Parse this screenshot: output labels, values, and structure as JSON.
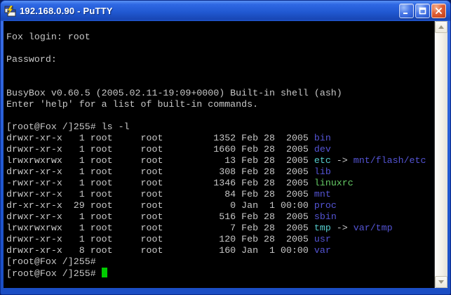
{
  "window": {
    "title": "192.168.0.90 - PuTTY",
    "icons": {
      "app": "putty-terminals-icon",
      "minimize": "minimize-icon",
      "maximize": "maximize-icon",
      "close": "close-icon",
      "scroll_up": "chevron-up-icon",
      "scroll_down": "chevron-down-icon"
    }
  },
  "colors": {
    "titlebar_blue": "#2159d2",
    "border_blue": "#1f55d6",
    "terminal_bg": "#000000",
    "fg": "#c8c8c8",
    "dir_blue": "#5454d4",
    "link_cyan": "#55cccc",
    "exec_green": "#66cc66",
    "cursor_green": "#00cc00"
  },
  "terminal": {
    "prompt": "[root@Fox /]255#",
    "lines": [
      {
        "segments": [
          {
            "t": "Fox login: root",
            "c": "fg"
          }
        ]
      },
      {
        "segments": []
      },
      {
        "segments": [
          {
            "t": "Password:",
            "c": "fg"
          }
        ]
      },
      {
        "segments": []
      },
      {
        "segments": []
      },
      {
        "segments": [
          {
            "t": "BusyBox v0.60.5 (2005.02.11-19:09+0000) Built-in shell (ash)",
            "c": "fg"
          }
        ]
      },
      {
        "segments": [
          {
            "t": "Enter 'help' for a list of built-in commands.",
            "c": "fg"
          }
        ]
      },
      {
        "segments": []
      },
      {
        "segments": [
          {
            "t": "[root@Fox /]255# ls -l",
            "c": "fg"
          }
        ]
      },
      {
        "segments": [
          {
            "t": "drwxr-xr-x   1 root     root         1352 Feb 28  2005 ",
            "c": "fg"
          },
          {
            "t": "bin",
            "c": "dir"
          }
        ]
      },
      {
        "segments": [
          {
            "t": "drwxr-xr-x   1 root     root         1660 Feb 28  2005 ",
            "c": "fg"
          },
          {
            "t": "dev",
            "c": "dir"
          }
        ]
      },
      {
        "segments": [
          {
            "t": "lrwxrwxrwx   1 root     root           13 Feb 28  2005 ",
            "c": "fg"
          },
          {
            "t": "etc",
            "c": "link"
          },
          {
            "t": " -> ",
            "c": "fg"
          },
          {
            "t": "mnt/flash/etc",
            "c": "dir"
          }
        ]
      },
      {
        "segments": [
          {
            "t": "drwxr-xr-x   1 root     root          308 Feb 28  2005 ",
            "c": "fg"
          },
          {
            "t": "lib",
            "c": "dir"
          }
        ]
      },
      {
        "segments": [
          {
            "t": "-rwxr-xr-x   1 root     root         1346 Feb 28  2005 ",
            "c": "fg"
          },
          {
            "t": "linuxrc",
            "c": "exe"
          }
        ]
      },
      {
        "segments": [
          {
            "t": "drwxr-xr-x   1 root     root           84 Feb 28  2005 ",
            "c": "fg"
          },
          {
            "t": "mnt",
            "c": "dir"
          }
        ]
      },
      {
        "segments": [
          {
            "t": "dr-xr-xr-x  29 root     root            0 Jan  1 00:00 ",
            "c": "fg"
          },
          {
            "t": "proc",
            "c": "dir"
          }
        ]
      },
      {
        "segments": [
          {
            "t": "drwxr-xr-x   1 root     root          516 Feb 28  2005 ",
            "c": "fg"
          },
          {
            "t": "sbin",
            "c": "dir"
          }
        ]
      },
      {
        "segments": [
          {
            "t": "lrwxrwxrwx   1 root     root            7 Feb 28  2005 ",
            "c": "fg"
          },
          {
            "t": "tmp",
            "c": "link"
          },
          {
            "t": " -> ",
            "c": "fg"
          },
          {
            "t": "var/tmp",
            "c": "dir"
          }
        ]
      },
      {
        "segments": [
          {
            "t": "drwxr-xr-x   1 root     root          120 Feb 28  2005 ",
            "c": "fg"
          },
          {
            "t": "usr",
            "c": "dir"
          }
        ]
      },
      {
        "segments": [
          {
            "t": "drwxr-xr-x   8 root     root          160 Jan  1 00:00 ",
            "c": "fg"
          },
          {
            "t": "var",
            "c": "dir"
          }
        ]
      },
      {
        "segments": [
          {
            "t": "[root@Fox /]255#",
            "c": "fg"
          }
        ]
      },
      {
        "segments": [
          {
            "t": "[root@Fox /]255# ",
            "c": "fg"
          }
        ],
        "cursor": true
      }
    ]
  }
}
